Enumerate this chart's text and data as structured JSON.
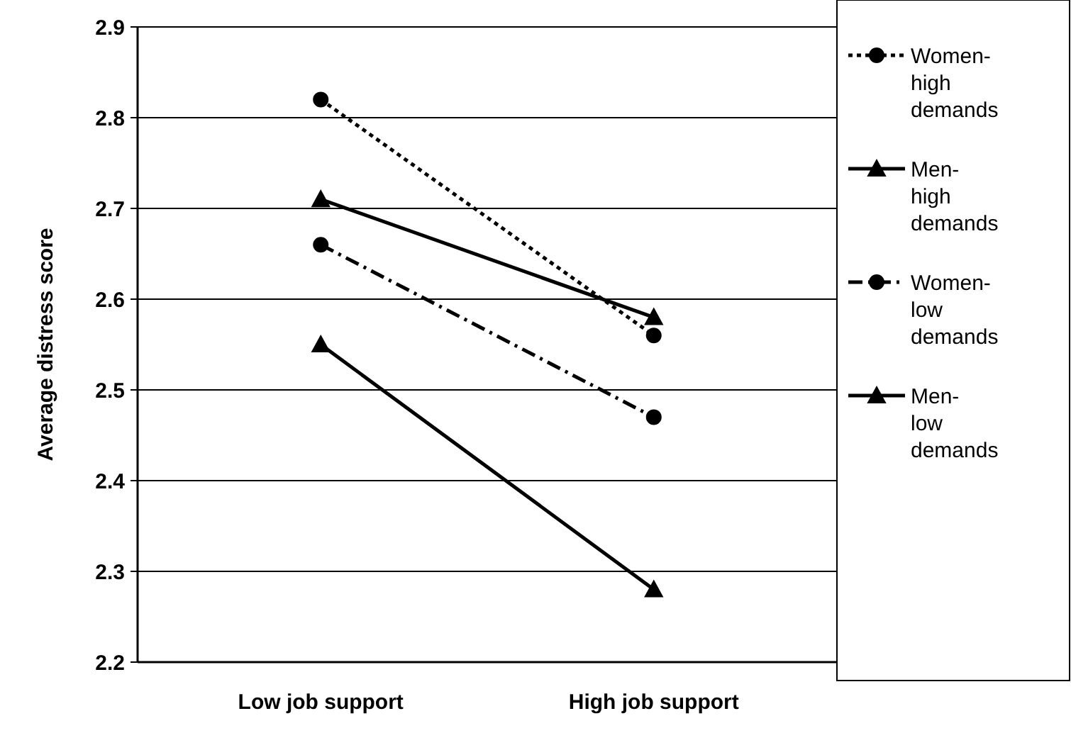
{
  "chart_data": {
    "type": "line",
    "ylabel": "Average distress score",
    "categories": [
      "Low job support",
      "High job support"
    ],
    "ylim": [
      2.2,
      2.9
    ],
    "yticks": [
      2.2,
      2.3,
      2.4,
      2.5,
      2.6,
      2.7,
      2.8,
      2.9
    ],
    "grid": "y",
    "legend": "right",
    "series": [
      {
        "name": "Women-high demands",
        "color": "#000000",
        "values": [
          2.82,
          2.56
        ],
        "marker": "circle",
        "line_style": "dotted"
      },
      {
        "name": "Men-high demands",
        "color": "#000000",
        "values": [
          2.71,
          2.58
        ],
        "marker": "triangle",
        "line_style": "solid"
      },
      {
        "name": "Women-low demands",
        "color": "#000000",
        "values": [
          2.66,
          2.47
        ],
        "marker": "circle",
        "line_style": "dashed"
      },
      {
        "name": "Men-low demands",
        "color": "#000000",
        "values": [
          2.55,
          2.28
        ],
        "marker": "triangle",
        "line_style": "solid"
      }
    ]
  }
}
